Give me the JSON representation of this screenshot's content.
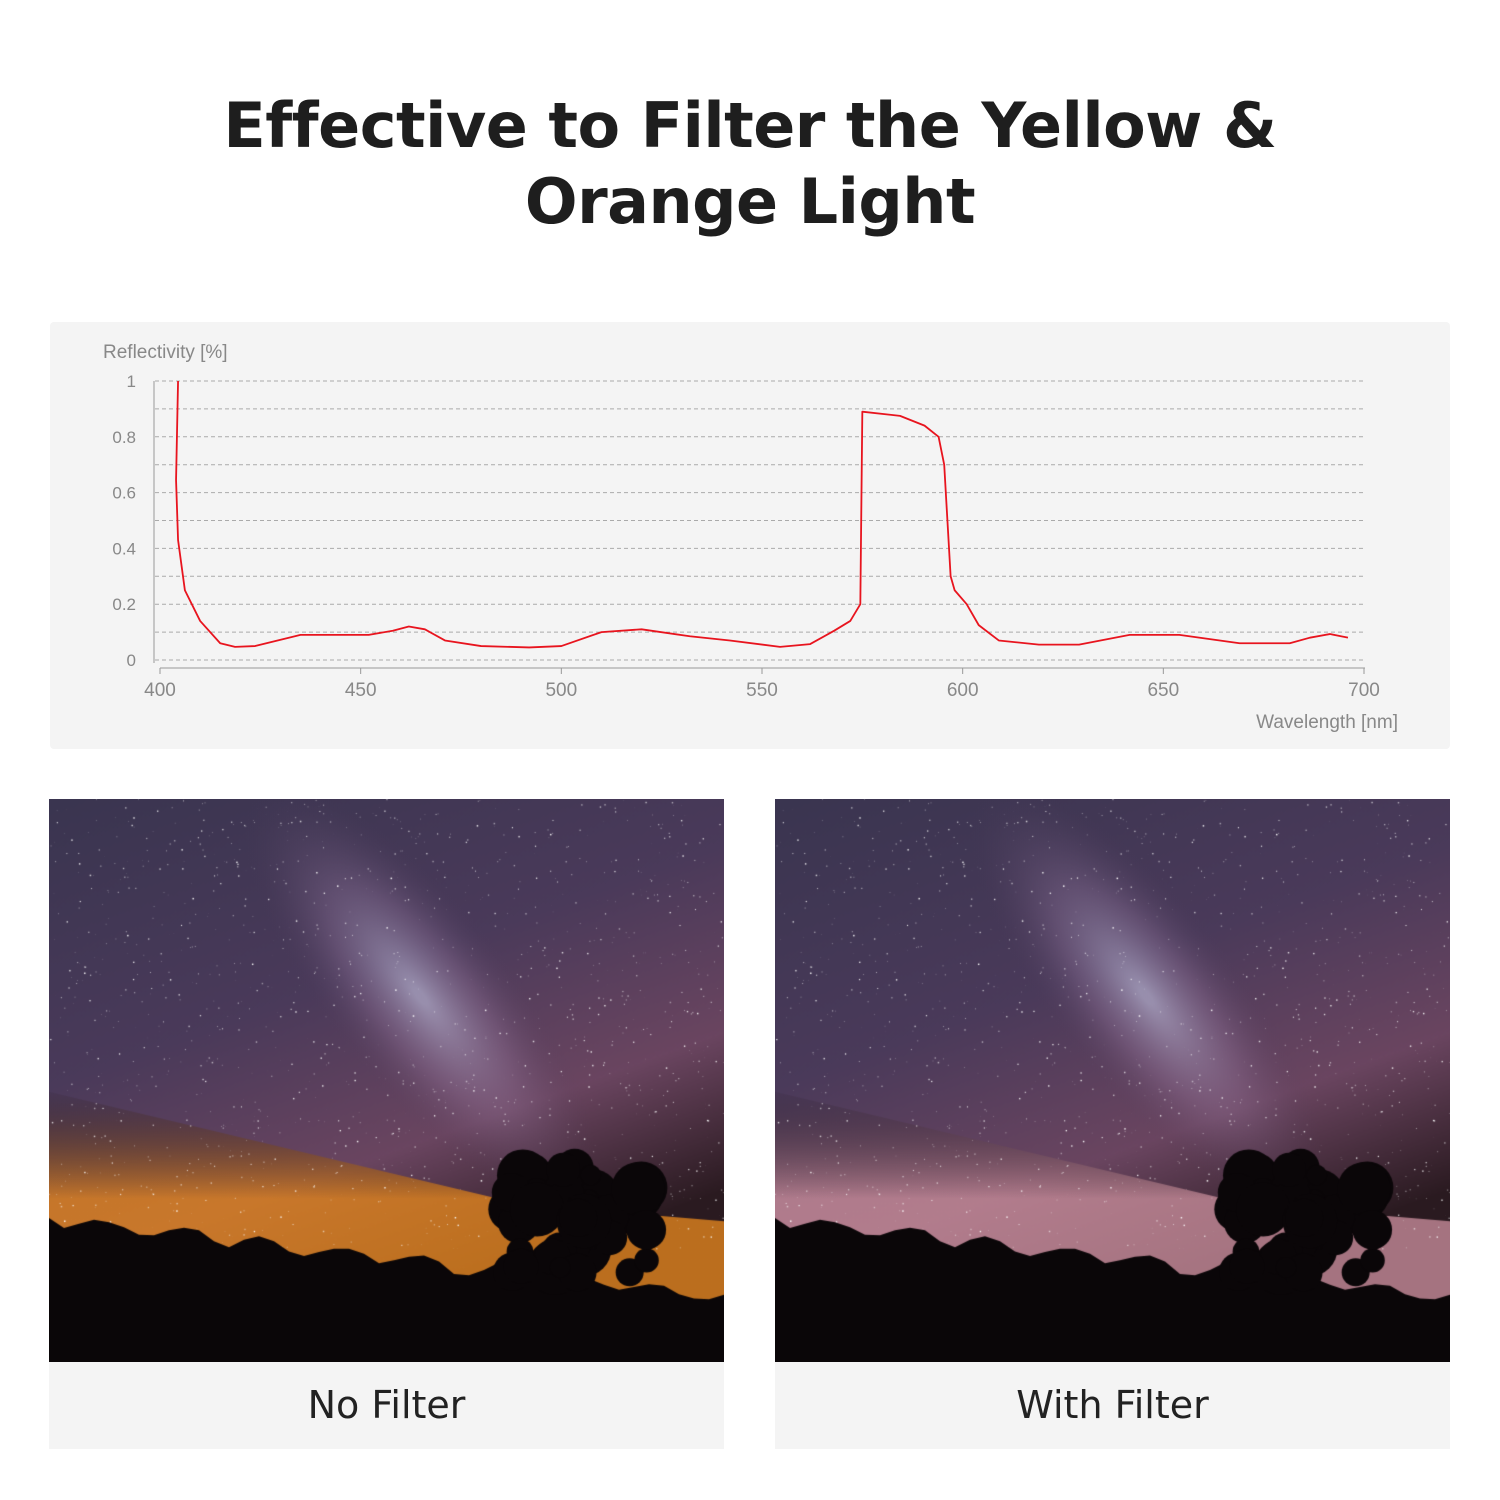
{
  "title_line1": "Effective to Filter the Yellow &",
  "title_line2": "Orange Light",
  "chart_data": {
    "type": "line",
    "ylabel": "Reflectivity [%]",
    "xlabel": "Wavelength [nm]",
    "xlim": [
      400,
      700
    ],
    "ylim": [
      0,
      1
    ],
    "xticks": [
      "400",
      "450",
      "500",
      "550",
      "600",
      "650",
      "700"
    ],
    "yticks": [
      "0",
      "0.2",
      "0.4",
      "0.6",
      "0.8",
      "1"
    ],
    "grid": true,
    "line_color": "#e8141e",
    "series": [
      {
        "x": [
          404.5,
          404,
          404.5,
          406.2,
          410,
          415,
          418.7,
          423.7,
          435,
          452,
          458,
          462,
          466,
          471,
          480,
          492,
          500,
          510,
          520,
          532,
          542,
          554.5,
          562,
          568,
          572,
          574.5,
          575,
          584.4,
          590.5,
          594,
          595.4,
          597,
          598,
          601,
          604,
          609,
          619,
          629,
          641.6,
          654,
          669,
          681.5,
          686.5,
          691.5,
          696
        ],
        "y": [
          1.0,
          0.645,
          0.43,
          0.25,
          0.14,
          0.06,
          0.047,
          0.05,
          0.09,
          0.09,
          0.105,
          0.12,
          0.11,
          0.07,
          0.05,
          0.045,
          0.05,
          0.1,
          0.11,
          0.085,
          0.07,
          0.047,
          0.057,
          0.105,
          0.14,
          0.2,
          0.89,
          0.875,
          0.84,
          0.8,
          0.7,
          0.3,
          0.25,
          0.2,
          0.125,
          0.07,
          0.055,
          0.055,
          0.09,
          0.09,
          0.06,
          0.06,
          0.08,
          0.093,
          0.08
        ]
      }
    ]
  },
  "photos": [
    {
      "caption": "No Filter",
      "glow": "#e0841e"
    },
    {
      "caption": "With Filter",
      "glow": "#c48a98"
    }
  ]
}
